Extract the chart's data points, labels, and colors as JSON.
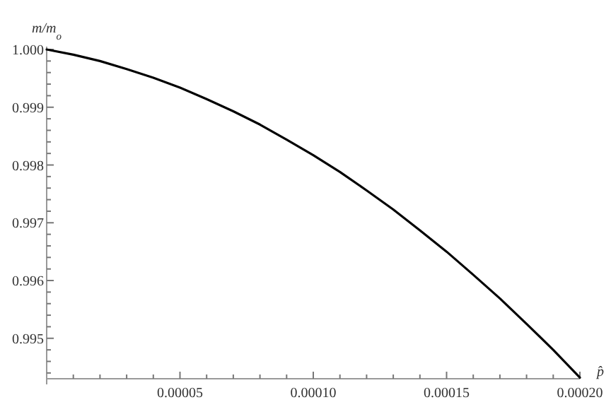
{
  "chart_data": {
    "type": "line",
    "ylabel": "m/m$_{o}$",
    "xlabel": "p̂",
    "x": [
      0,
      1e-05,
      2e-05,
      3e-05,
      4e-05,
      5e-05,
      6e-05,
      7e-05,
      8e-05,
      9e-05,
      0.0001,
      0.00011,
      0.00012,
      0.00013,
      0.00014,
      0.00015,
      0.00016,
      0.00017,
      0.00018,
      0.00019,
      0.0002
    ],
    "series": [
      {
        "color": "#000000",
        "values": [
          1.0,
          0.99991,
          0.9998,
          0.99966,
          0.99951,
          0.99934,
          0.99914,
          0.99893,
          0.9987,
          0.99844,
          0.99817,
          0.99788,
          0.99756,
          0.99723,
          0.99687,
          0.9965,
          0.9961,
          0.99569,
          0.99525,
          0.9948,
          0.99432
        ]
      }
    ],
    "xlim": [
      0,
      0.0002
    ],
    "ylim": [
      0.9943,
      1.0
    ],
    "xticks": [
      {
        "value": 0,
        "label": null
      },
      {
        "value": 1e-05,
        "label": null
      },
      {
        "value": 2e-05,
        "label": null
      },
      {
        "value": 3e-05,
        "label": null
      },
      {
        "value": 4e-05,
        "label": null
      },
      {
        "value": 5e-05,
        "label": "0.00005"
      },
      {
        "value": 6e-05,
        "label": null
      },
      {
        "value": 7e-05,
        "label": null
      },
      {
        "value": 8e-05,
        "label": null
      },
      {
        "value": 9e-05,
        "label": null
      },
      {
        "value": 0.0001,
        "label": "0.00010"
      },
      {
        "value": 0.00011,
        "label": null
      },
      {
        "value": 0.00012,
        "label": null
      },
      {
        "value": 0.00013,
        "label": null
      },
      {
        "value": 0.00014,
        "label": null
      },
      {
        "value": 0.00015,
        "label": "0.00015"
      },
      {
        "value": 0.00016,
        "label": null
      },
      {
        "value": 0.00017,
        "label": null
      },
      {
        "value": 0.00018,
        "label": null
      },
      {
        "value": 0.00019,
        "label": null
      },
      {
        "value": 0.0002,
        "label": "0.00020"
      }
    ],
    "yticks": [
      {
        "value": 0.9944,
        "label": null
      },
      {
        "value": 0.9946,
        "label": null
      },
      {
        "value": 0.9948,
        "label": null
      },
      {
        "value": 0.995,
        "label": "0.995"
      },
      {
        "value": 0.9952,
        "label": null
      },
      {
        "value": 0.9954,
        "label": null
      },
      {
        "value": 0.9956,
        "label": null
      },
      {
        "value": 0.9958,
        "label": null
      },
      {
        "value": 0.996,
        "label": "0.996"
      },
      {
        "value": 0.9962,
        "label": null
      },
      {
        "value": 0.9964,
        "label": null
      },
      {
        "value": 0.9966,
        "label": null
      },
      {
        "value": 0.9968,
        "label": null
      },
      {
        "value": 0.997,
        "label": "0.997"
      },
      {
        "value": 0.9972,
        "label": null
      },
      {
        "value": 0.9974,
        "label": null
      },
      {
        "value": 0.9976,
        "label": null
      },
      {
        "value": 0.9978,
        "label": null
      },
      {
        "value": 0.998,
        "label": "0.998"
      },
      {
        "value": 0.9982,
        "label": null
      },
      {
        "value": 0.9984,
        "label": null
      },
      {
        "value": 0.9986,
        "label": null
      },
      {
        "value": 0.9988,
        "label": null
      },
      {
        "value": 0.999,
        "label": "0.999"
      },
      {
        "value": 0.9992,
        "label": null
      },
      {
        "value": 0.9994,
        "label": null
      },
      {
        "value": 0.9996,
        "label": null
      },
      {
        "value": 0.9998,
        "label": null
      },
      {
        "value": 1.0,
        "label": "1.000"
      }
    ],
    "grid": false,
    "marker": "none",
    "line_style": "solid"
  }
}
